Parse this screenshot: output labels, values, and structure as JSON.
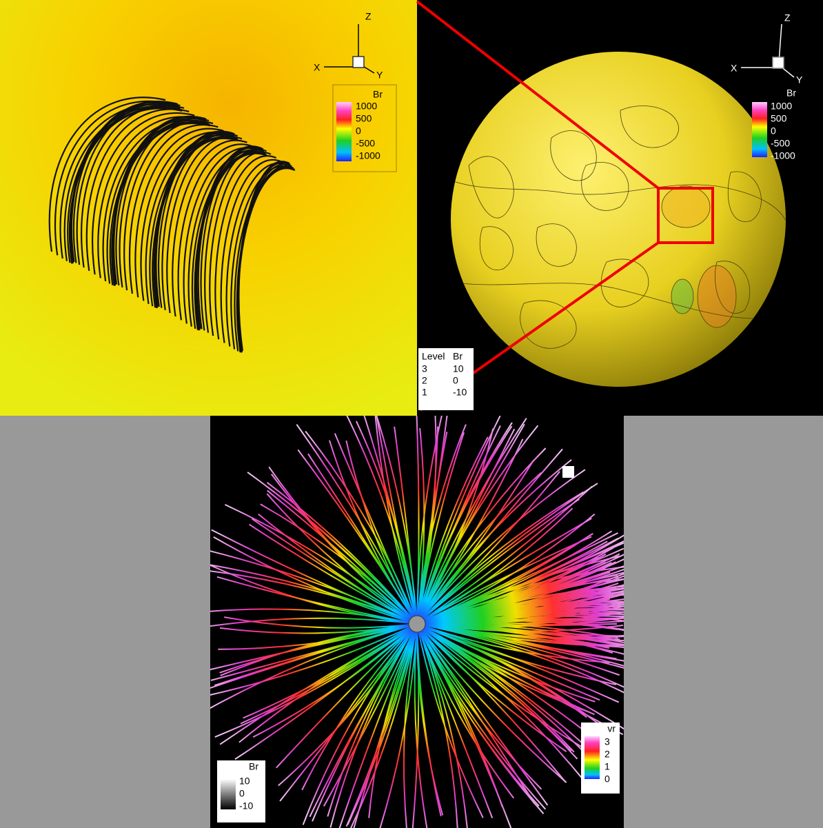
{
  "panels": [
    {
      "axes": {
        "z": "Z",
        "x": "X",
        "y": "Y"
      },
      "legend": {
        "title": "Br",
        "labels": [
          1000,
          500,
          0,
          -500,
          -1000
        ]
      }
    },
    {
      "axes": {
        "z": "Z",
        "x": "X",
        "y": "Y"
      },
      "legend": {
        "title": "Br",
        "labels": [
          1000,
          500,
          0,
          -500,
          -1000
        ]
      },
      "contour_table": {
        "header": [
          "Level",
          "Br"
        ],
        "rows": [
          [
            3,
            10
          ],
          [
            2,
            0
          ],
          [
            1,
            -10
          ]
        ]
      }
    },
    {
      "legends": [
        {
          "title": "vr",
          "labels": [
            3,
            2,
            1,
            0
          ]
        },
        {
          "title": "Br",
          "labels": [
            10,
            0,
            -10
          ]
        }
      ]
    }
  ]
}
